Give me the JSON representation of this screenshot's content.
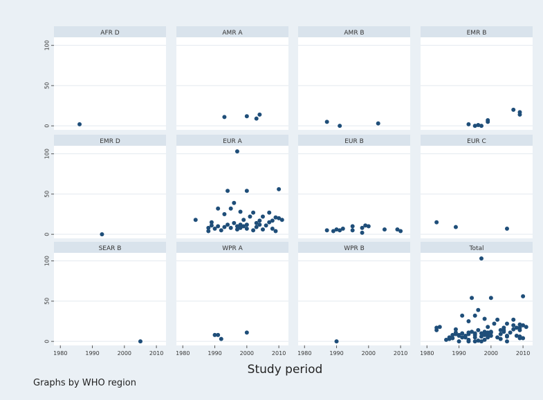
{
  "figure": {
    "x_axis_label": "Study period",
    "note": "Graphs by WHO region",
    "background": "#eaf0f5",
    "panel_header_color": "#d9e3ec",
    "marker_color": "#1f4e79"
  },
  "chart_data": {
    "type": "scatter",
    "xlabel": "Study period",
    "ylabel": "",
    "xlim": [
      1978,
      2013
    ],
    "ylim": [
      -5,
      110
    ],
    "x_ticks": [
      "1980",
      "1990",
      "2000",
      "2010"
    ],
    "y_ticks": [
      "0",
      "50",
      "100"
    ],
    "grid": true,
    "panels": [
      {
        "name": "AFR D",
        "points": [
          [
            1986,
            2
          ]
        ]
      },
      {
        "name": "AMR A",
        "points": [
          [
            1993,
            11
          ],
          [
            2000,
            12
          ],
          [
            2003,
            9
          ],
          [
            2004,
            14
          ]
        ]
      },
      {
        "name": "AMR B",
        "points": [
          [
            1987,
            5
          ],
          [
            1991,
            0
          ],
          [
            2003,
            3
          ]
        ]
      },
      {
        "name": "EMR B",
        "points": [
          [
            1993,
            2
          ],
          [
            1995,
            0
          ],
          [
            1996,
            1
          ],
          [
            1997,
            0
          ],
          [
            1999,
            5
          ],
          [
            1999,
            7
          ],
          [
            2007,
            20
          ],
          [
            2009,
            17
          ],
          [
            2009,
            14
          ]
        ]
      },
      {
        "name": "EMR D",
        "points": [
          [
            1993,
            0
          ]
        ]
      },
      {
        "name": "EUR A",
        "points": [
          [
            1984,
            18
          ],
          [
            1988,
            8
          ],
          [
            1988,
            4
          ],
          [
            1989,
            11
          ],
          [
            1989,
            15
          ],
          [
            1990,
            7
          ],
          [
            1991,
            32
          ],
          [
            1991,
            10
          ],
          [
            1992,
            5
          ],
          [
            1993,
            25
          ],
          [
            1993,
            9
          ],
          [
            1994,
            54
          ],
          [
            1994,
            12
          ],
          [
            1995,
            32
          ],
          [
            1995,
            8
          ],
          [
            1996,
            39
          ],
          [
            1996,
            14
          ],
          [
            1997,
            103
          ],
          [
            1997,
            10
          ],
          [
            1997,
            6
          ],
          [
            1998,
            28
          ],
          [
            1998,
            12
          ],
          [
            1998,
            8
          ],
          [
            1999,
            18
          ],
          [
            1999,
            10
          ],
          [
            2000,
            54
          ],
          [
            2000,
            12
          ],
          [
            2000,
            7
          ],
          [
            2001,
            22
          ],
          [
            2002,
            27
          ],
          [
            2002,
            5
          ],
          [
            2003,
            9
          ],
          [
            2003,
            14
          ],
          [
            2004,
            17
          ],
          [
            2004,
            12
          ],
          [
            2005,
            6
          ],
          [
            2005,
            22
          ],
          [
            2006,
            11
          ],
          [
            2007,
            27
          ],
          [
            2007,
            15
          ],
          [
            2008,
            17
          ],
          [
            2008,
            7
          ],
          [
            2009,
            21
          ],
          [
            2009,
            4
          ],
          [
            2010,
            56
          ],
          [
            2010,
            20
          ],
          [
            2011,
            18
          ]
        ]
      },
      {
        "name": "EUR B",
        "points": [
          [
            1987,
            5
          ],
          [
            1989,
            4
          ],
          [
            1990,
            6
          ],
          [
            1991,
            5
          ],
          [
            1992,
            7
          ],
          [
            1995,
            10
          ],
          [
            1995,
            5
          ],
          [
            1998,
            2
          ],
          [
            1998,
            8
          ],
          [
            1999,
            11
          ],
          [
            2000,
            10
          ],
          [
            2005,
            6
          ],
          [
            2009,
            6
          ],
          [
            2010,
            4
          ]
        ]
      },
      {
        "name": "EUR C",
        "points": [
          [
            1983,
            15
          ],
          [
            1989,
            9
          ],
          [
            2005,
            7
          ]
        ]
      },
      {
        "name": "SEAR B",
        "points": [
          [
            2005,
            0
          ]
        ]
      },
      {
        "name": "WPR A",
        "points": [
          [
            1990,
            8
          ],
          [
            1991,
            8
          ],
          [
            1992,
            3
          ],
          [
            2000,
            11
          ]
        ]
      },
      {
        "name": "WPR B",
        "points": [
          [
            1990,
            0
          ]
        ]
      },
      {
        "name": "Total",
        "points": [
          [
            1983,
            17
          ],
          [
            1983,
            14
          ],
          [
            1984,
            18
          ],
          [
            1986,
            2
          ],
          [
            1987,
            5
          ],
          [
            1987,
            3
          ],
          [
            1988,
            8
          ],
          [
            1988,
            4
          ],
          [
            1989,
            11
          ],
          [
            1989,
            9
          ],
          [
            1989,
            15
          ],
          [
            1990,
            8
          ],
          [
            1990,
            7
          ],
          [
            1990,
            0
          ],
          [
            1991,
            32
          ],
          [
            1991,
            10
          ],
          [
            1991,
            5
          ],
          [
            1992,
            5
          ],
          [
            1992,
            7
          ],
          [
            1993,
            25
          ],
          [
            1993,
            11
          ],
          [
            1993,
            9
          ],
          [
            1993,
            2
          ],
          [
            1993,
            0
          ],
          [
            1994,
            54
          ],
          [
            1994,
            12
          ],
          [
            1995,
            32
          ],
          [
            1995,
            10
          ],
          [
            1995,
            8
          ],
          [
            1995,
            5
          ],
          [
            1995,
            0
          ],
          [
            1996,
            39
          ],
          [
            1996,
            14
          ],
          [
            1996,
            1
          ],
          [
            1997,
            103
          ],
          [
            1997,
            10
          ],
          [
            1997,
            6
          ],
          [
            1997,
            0
          ],
          [
            1998,
            28
          ],
          [
            1998,
            12
          ],
          [
            1998,
            8
          ],
          [
            1998,
            2
          ],
          [
            1999,
            18
          ],
          [
            1999,
            11
          ],
          [
            1999,
            10
          ],
          [
            1999,
            7
          ],
          [
            1999,
            5
          ],
          [
            2000,
            54
          ],
          [
            2000,
            12
          ],
          [
            2000,
            11
          ],
          [
            2000,
            7
          ],
          [
            2001,
            22
          ],
          [
            2002,
            27
          ],
          [
            2002,
            5
          ],
          [
            2003,
            14
          ],
          [
            2003,
            9
          ],
          [
            2003,
            3
          ],
          [
            2004,
            17
          ],
          [
            2004,
            14
          ],
          [
            2004,
            12
          ],
          [
            2005,
            22
          ],
          [
            2005,
            7
          ],
          [
            2005,
            6
          ],
          [
            2005,
            0
          ],
          [
            2006,
            11
          ],
          [
            2007,
            27
          ],
          [
            2007,
            20
          ],
          [
            2007,
            15
          ],
          [
            2008,
            17
          ],
          [
            2008,
            7
          ],
          [
            2009,
            21
          ],
          [
            2009,
            17
          ],
          [
            2009,
            14
          ],
          [
            2009,
            6
          ],
          [
            2009,
            4
          ],
          [
            2010,
            56
          ],
          [
            2010,
            20
          ],
          [
            2010,
            4
          ],
          [
            2011,
            18
          ]
        ]
      }
    ]
  }
}
